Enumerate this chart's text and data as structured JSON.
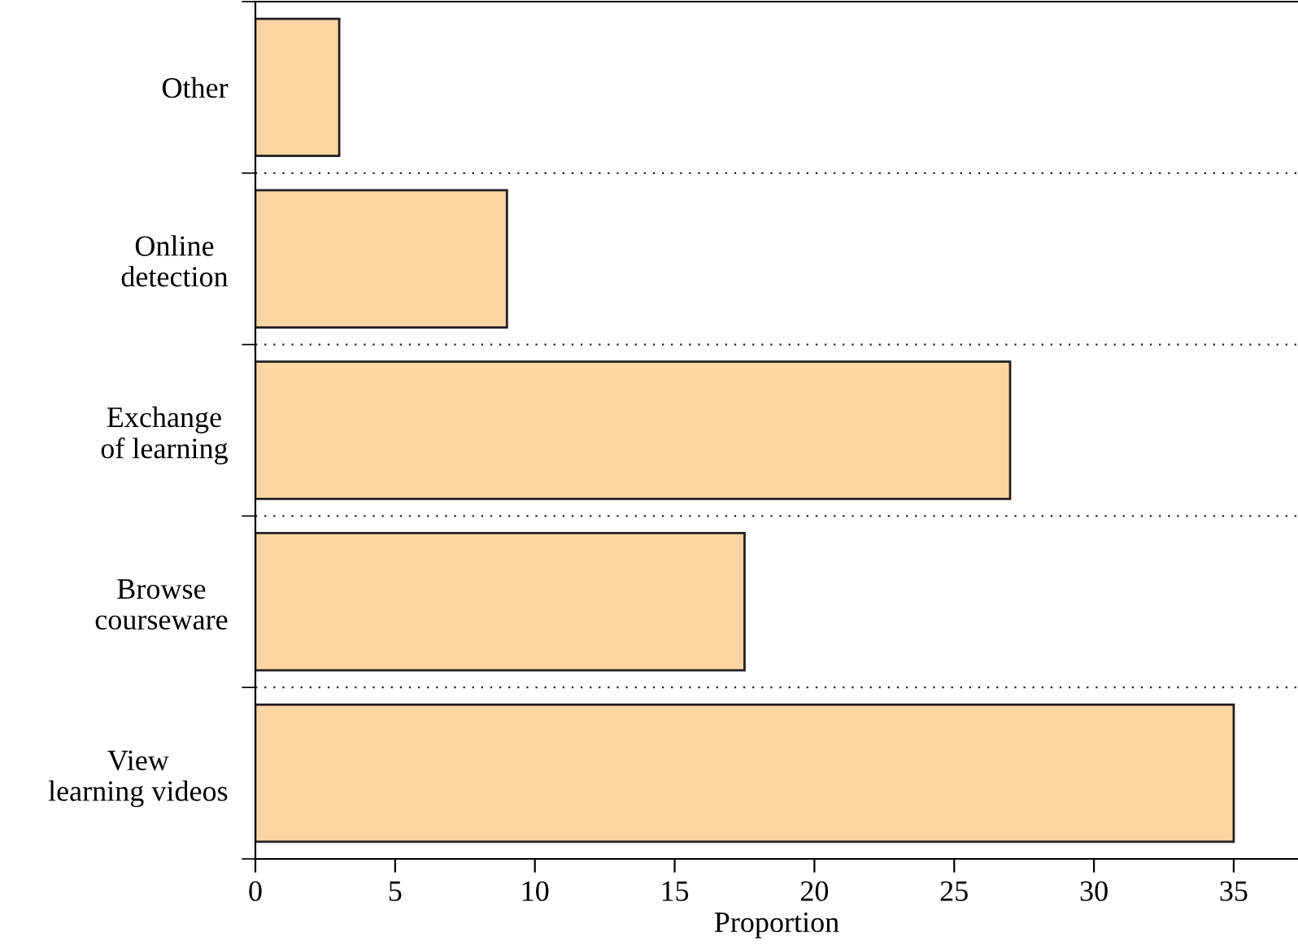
{
  "chart_data": {
    "type": "bar",
    "orientation": "horizontal",
    "xlabel": "Proportion",
    "categories": [
      "Other",
      "Online\ndetection",
      "Exchange\nof learning",
      "Browse\ncourseware",
      "View\nlearning videos"
    ],
    "values": [
      3,
      9,
      27,
      17.5,
      35
    ],
    "color": "#fdd5a5",
    "xlim": [
      0,
      37.3
    ],
    "xticks": [
      0,
      5,
      10,
      15,
      20,
      25,
      30,
      35
    ],
    "grid": "y"
  }
}
